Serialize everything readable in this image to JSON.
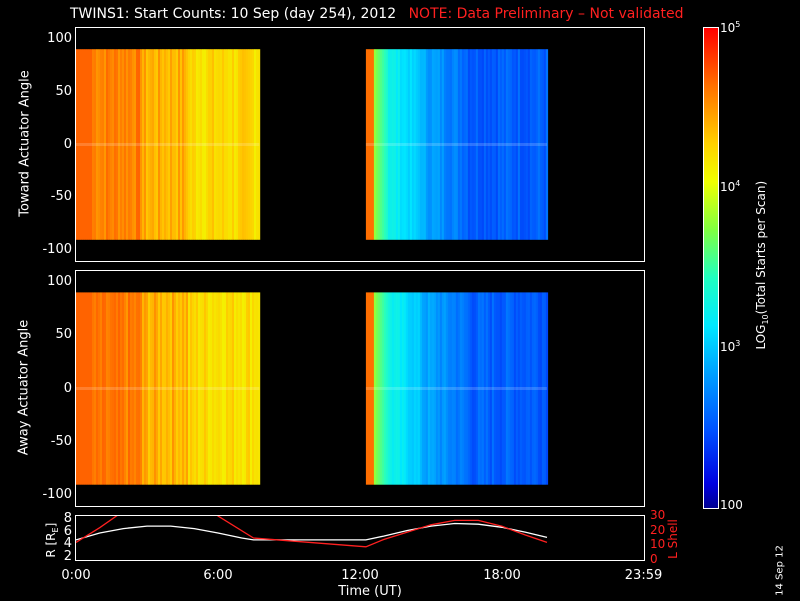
{
  "title": "TWINS1: Start Counts: 10 Sep (day 254), 2012",
  "note": "NOTE: Data Preliminary – Not validated",
  "side_stamp": "14 Sep 12",
  "colors": {
    "note": "#ff2020",
    "orbit_r": "#ffffff",
    "orbit_l": "#ff2020"
  },
  "chart_data": [
    {
      "type": "heatmap",
      "ylabel": "Toward Actuator Angle",
      "ylim": [
        -110,
        110
      ],
      "yticks": [
        "100",
        "50",
        "0",
        "-50",
        "-100"
      ],
      "ytick_values": [
        100,
        50,
        0,
        -50,
        -100
      ],
      "angle_range": [
        -90,
        90
      ],
      "blocks": [
        {
          "start_hour": 0.0,
          "end_hour": 7.75,
          "profile": "orange-yellow"
        },
        {
          "start_hour": 12.25,
          "end_hour": 19.9,
          "profile": "orange-cyan-blue"
        }
      ]
    },
    {
      "type": "heatmap",
      "ylabel": "Away Actuator Angle",
      "ylim": [
        -110,
        110
      ],
      "yticks": [
        "100",
        "50",
        "0",
        "-50",
        "-100"
      ],
      "ytick_values": [
        100,
        50,
        0,
        -50,
        -100
      ],
      "angle_range": [
        -90,
        90
      ],
      "blocks": [
        {
          "start_hour": 0.0,
          "end_hour": 7.75,
          "profile": "orange-yellow"
        },
        {
          "start_hour": 12.25,
          "end_hour": 19.9,
          "profile": "orange-cyan-blue"
        }
      ]
    },
    {
      "type": "line",
      "ylabel_left": "R [R",
      "ylabel_left_sub": "E",
      "ylabel_left_end": "]",
      "ylabel_right": "L Shell",
      "yticks_left": [
        "8",
        "6",
        "4",
        "2"
      ],
      "ytick_values_left": [
        8,
        6,
        4,
        2
      ],
      "ylim_left": [
        1.5,
        8.5
      ],
      "yticks_right": [
        "30",
        "20",
        "10",
        "0"
      ],
      "ytick_values_right": [
        30,
        20,
        10,
        0
      ],
      "ylim_right": [
        0,
        30
      ],
      "series": [
        {
          "axis": "left",
          "x": [
            0,
            1,
            2,
            3,
            4,
            5,
            6,
            7,
            7.5,
            12.25,
            13,
            14,
            15,
            16,
            17,
            18,
            19,
            19.9
          ],
          "y": [
            4.7,
            5.8,
            6.5,
            6.9,
            6.9,
            6.5,
            5.8,
            5.0,
            4.7,
            4.7,
            5.3,
            6.2,
            6.9,
            7.3,
            7.2,
            6.7,
            5.9,
            5.1
          ]
        },
        {
          "axis": "right",
          "x": [
            0,
            1,
            1.8,
            2.2,
            5.5,
            6.0,
            7.5,
            12.25,
            13,
            14,
            15,
            16,
            17,
            18,
            19,
            19.9
          ],
          "y": [
            12,
            22,
            31,
            40,
            40,
            30,
            15,
            9,
            14,
            19,
            24,
            27,
            27,
            23,
            17,
            12
          ]
        }
      ],
      "xlabel": "Time (UT)",
      "xticks": [
        "0:00",
        "6:00",
        "12:00",
        "18:00",
        "23:59"
      ],
      "xtick_values": [
        0,
        6,
        12,
        18,
        23.98
      ],
      "xlim": [
        0,
        24
      ]
    }
  ],
  "colorbar": {
    "label": "LOG",
    "label_sub": "10",
    "label_end": "(Total Starts per Scan)",
    "ticks": [
      {
        "base": "10",
        "exp": "5",
        "value": 100000
      },
      {
        "base": "10",
        "exp": "4",
        "value": 10000
      },
      {
        "base": "10",
        "exp": "3",
        "value": 1000
      },
      {
        "base": "100",
        "exp": "",
        "value": 100
      }
    ],
    "range": [
      100,
      100000
    ],
    "scale": "log"
  }
}
